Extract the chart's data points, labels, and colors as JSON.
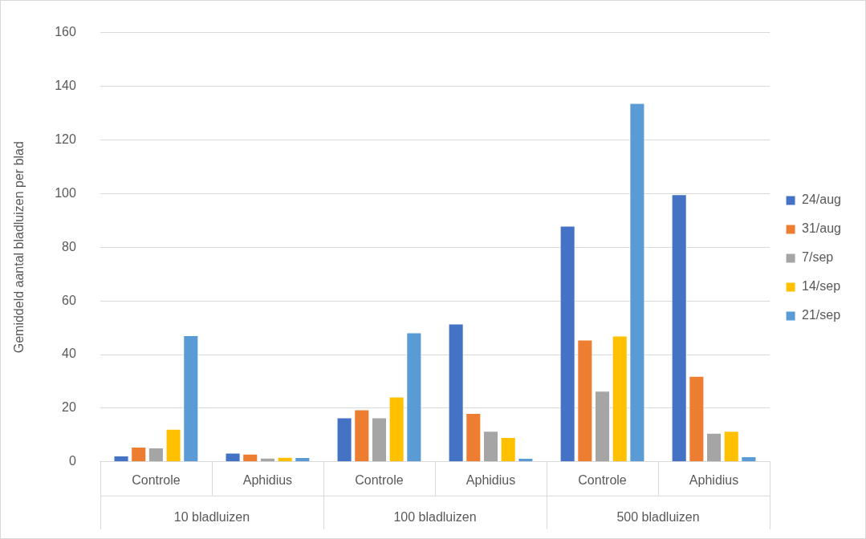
{
  "chart_data": {
    "type": "bar",
    "ylabel": "Gemiddeld aantal bladluizen per blad",
    "categories": [
      "Controle",
      "Aphidius",
      "Controle",
      "Aphidius",
      "Controle",
      "Aphidius"
    ],
    "series": [
      {
        "name": "24/aug",
        "color": "#4472c4",
        "values": [
          2.3,
          3.4,
          16.5,
          51.5,
          88,
          99.7
        ]
      },
      {
        "name": "31/aug",
        "color": "#ed7d31",
        "values": [
          5.6,
          3.0,
          19.5,
          18.2,
          45.5,
          32
        ]
      },
      {
        "name": "7/sep",
        "color": "#a5a5a5",
        "values": [
          5.3,
          1.5,
          16.5,
          11.5,
          26.5,
          10.8
        ]
      },
      {
        "name": "14/sep",
        "color": "#ffc000",
        "values": [
          12.3,
          1.8,
          24.3,
          9.2,
          47,
          11.5
        ]
      },
      {
        "name": "21/sep",
        "color": "#5b9bd5",
        "values": [
          47.2,
          1.7,
          48.2,
          1.4,
          133.7,
          2.0
        ]
      }
    ],
    "annotations": [
      "10 bladluizen",
      "100 bladluizen",
      "500 bladluizen"
    ],
    "ylim": [
      0,
      160
    ],
    "yticks": [
      0,
      20,
      40,
      60,
      80,
      100,
      120,
      140,
      160
    ],
    "grid": "y",
    "legend": "right"
  }
}
